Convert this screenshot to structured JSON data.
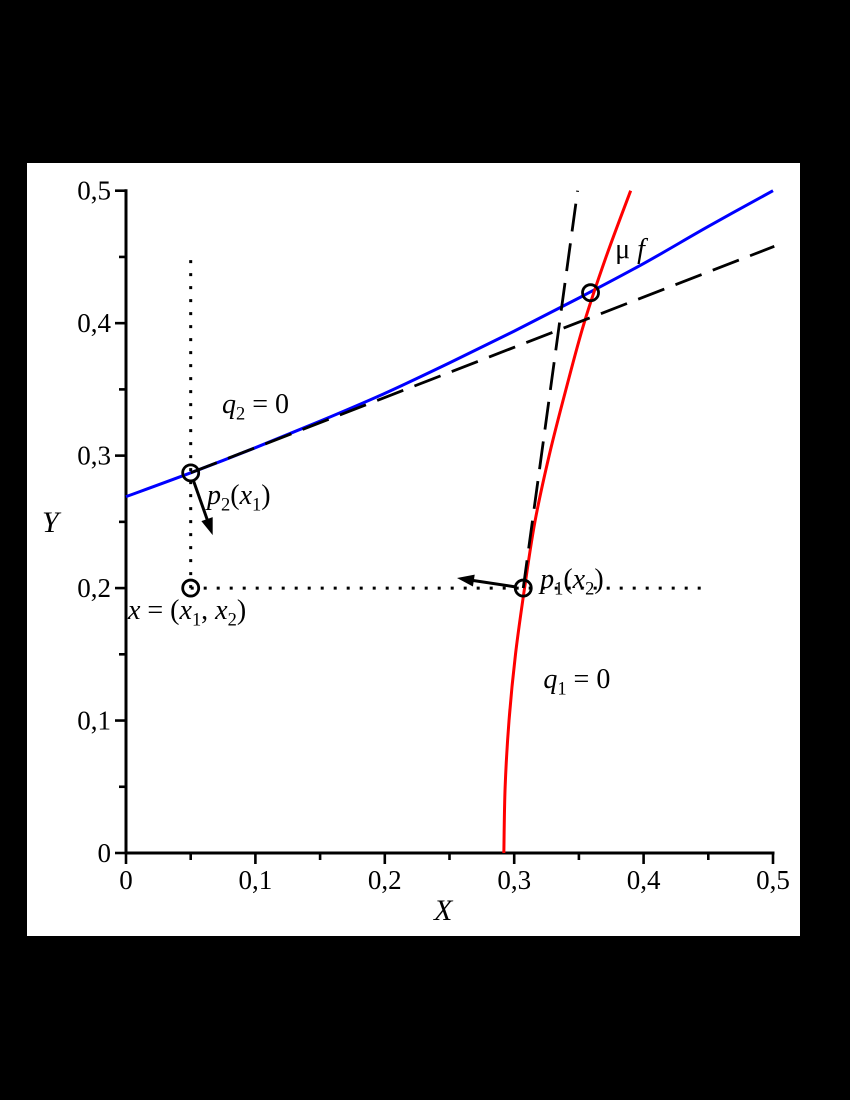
{
  "chart_data": {
    "type": "line",
    "title": "",
    "xlabel": "X",
    "ylabel": "Y",
    "xlim": [
      0,
      0.5
    ],
    "ylim": [
      0,
      0.5
    ],
    "decimal_separator": ",",
    "grid": false,
    "x_ticks": {
      "values": [
        0,
        0.1,
        0.2,
        0.3,
        0.4,
        0.5
      ],
      "labels": [
        "0",
        "0,1",
        "0,2",
        "0,3",
        "0,4",
        "0,5"
      ],
      "minor": [
        0.05,
        0.15,
        0.25,
        0.35,
        0.45
      ]
    },
    "y_ticks": {
      "values": [
        0,
        0.1,
        0.2,
        0.3,
        0.4,
        0.5
      ],
      "labels": [
        "0",
        "0,1",
        "0,2",
        "0,3",
        "0,4",
        "0,5"
      ],
      "minor": [
        0.05,
        0.15,
        0.25,
        0.35,
        0.45
      ]
    },
    "colors": {
      "mu_f_curve": "#0000ff",
      "q1_curve": "#ff0000",
      "ink": "#000000"
    },
    "series": [
      {
        "name": "mu-f-curve",
        "color": "#0000ff",
        "style": "solid",
        "width": 3,
        "points": [
          [
            0,
            0.269
          ],
          [
            0.05,
            0.287
          ],
          [
            0.1,
            0.306
          ],
          [
            0.15,
            0.326
          ],
          [
            0.2,
            0.347
          ],
          [
            0.25,
            0.37
          ],
          [
            0.3,
            0.394
          ],
          [
            0.35,
            0.419
          ],
          [
            0.4,
            0.445
          ],
          [
            0.45,
            0.473
          ],
          [
            0.5,
            0.5
          ]
        ]
      },
      {
        "name": "q1-zero-curve",
        "color": "#ff0000",
        "style": "solid",
        "width": 3,
        "points": [
          [
            0.292,
            0
          ],
          [
            0.293,
            0.05
          ],
          [
            0.296,
            0.1
          ],
          [
            0.301,
            0.15
          ],
          [
            0.308,
            0.2
          ],
          [
            0.316,
            0.25
          ],
          [
            0.327,
            0.3
          ],
          [
            0.34,
            0.35
          ],
          [
            0.354,
            0.4
          ],
          [
            0.371,
            0.45
          ],
          [
            0.39,
            0.5
          ]
        ]
      },
      {
        "name": "tangent-at-p2",
        "color": "#000000",
        "style": "long-dash",
        "width": 2.8,
        "points": [
          [
            0.05,
            0.287
          ],
          [
            0.501,
            0.458
          ]
        ]
      },
      {
        "name": "tangent-at-p1",
        "color": "#000000",
        "style": "long-dash",
        "width": 2.8,
        "points": [
          [
            0.307,
            0.2
          ],
          [
            0.349,
            0.5
          ]
        ]
      },
      {
        "name": "dotted-vertical-x1",
        "color": "#000000",
        "style": "dotted",
        "width": 3,
        "points": [
          [
            0.05,
            0.2
          ],
          [
            0.05,
            0.448
          ]
        ]
      },
      {
        "name": "dotted-horizontal-x2",
        "color": "#000000",
        "style": "dotted",
        "width": 3,
        "points": [
          [
            0.05,
            0.2
          ],
          [
            0.45,
            0.2
          ]
        ]
      }
    ],
    "markers": [
      {
        "name": "point-p2-x1",
        "x": 0.05,
        "y": 0.287
      },
      {
        "name": "point-x",
        "x": 0.05,
        "y": 0.2
      },
      {
        "name": "point-p1-x2",
        "x": 0.307,
        "y": 0.2
      },
      {
        "name": "point-intersection",
        "x": 0.359,
        "y": 0.423
      }
    ],
    "arrows": [
      {
        "name": "arrow-p2-gradient",
        "from": [
          0.05,
          0.287
        ],
        "to": [
          0.067,
          0.24
        ]
      },
      {
        "name": "arrow-p1-gradient",
        "from": [
          0.307,
          0.2
        ],
        "to": [
          0.2558,
          0.2076
        ]
      }
    ],
    "annotations": [
      {
        "id": "label-mu-f",
        "x": 0.378,
        "y": 0.4484,
        "parts": [
          {
            "t": "μ "
          },
          {
            "t": "f",
            "i": 1
          }
        ]
      },
      {
        "id": "label-q2-eq-0",
        "x": 0.0742,
        "y": 0.3314,
        "parts": [
          {
            "t": "q",
            "i": 1
          },
          {
            "t": "2",
            "sub": 1
          },
          {
            "t": " = 0"
          }
        ]
      },
      {
        "id": "label-p2-x1",
        "x": 0.0626,
        "y": 0.2627,
        "parts": [
          {
            "t": "p",
            "i": 1
          },
          {
            "t": "2",
            "sub": 1
          },
          {
            "t": "("
          },
          {
            "t": "x",
            "i": 1
          },
          {
            "t": "1",
            "sub": 1
          },
          {
            "t": ")"
          }
        ]
      },
      {
        "id": "label-x-point",
        "x": 0.0015,
        "y": 0.1759,
        "parts": [
          {
            "t": "x",
            "i": 1
          },
          {
            "t": " = ("
          },
          {
            "t": "x",
            "i": 1
          },
          {
            "t": "1",
            "sub": 1
          },
          {
            "t": ", "
          },
          {
            "t": "x",
            "i": 1
          },
          {
            "t": "2",
            "sub": 1
          },
          {
            "t": ")"
          }
        ]
      },
      {
        "id": "label-p1-x2",
        "x": 0.32,
        "y": 0.1993,
        "parts": [
          {
            "t": "p",
            "i": 1
          },
          {
            "t": "1",
            "sub": 1
          },
          {
            "t": "("
          },
          {
            "t": "x",
            "i": 1
          },
          {
            "t": "2",
            "sub": 1
          },
          {
            "t": ")"
          }
        ]
      },
      {
        "id": "label-q1-eq-0",
        "x": 0.3225,
        "y": 0.124,
        "parts": [
          {
            "t": "q",
            "i": 1
          },
          {
            "t": "1",
            "sub": 1
          },
          {
            "t": " = 0"
          }
        ]
      }
    ]
  }
}
